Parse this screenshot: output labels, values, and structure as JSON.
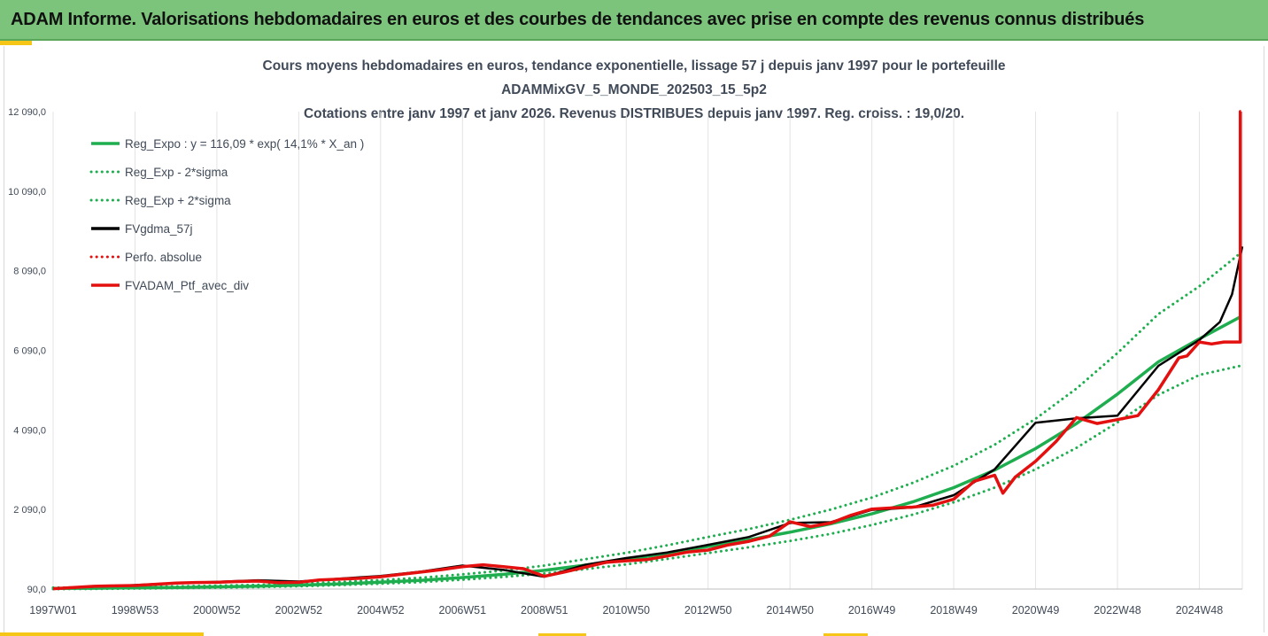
{
  "banner": {
    "title": "ADAM Informe. Valorisations hebdomadaires en euros et des courbes de tendances avec prise en compte des revenus connus distribués"
  },
  "chart_data": {
    "type": "line",
    "title": [
      "Cours moyens hebdomadaires  en euros, tendance exponentielle, lissage 57 j depuis janv 1997 pour le portefeuille",
      "ADAMMixGV_5_MONDE_202503_15_5p2",
      "Cotations entre janv 1997 et janv 2026. Revenus DISTRIBUES depuis janv 1997. Reg. croiss. : 19,0/20."
    ],
    "xlabel": "",
    "ylabel": "",
    "ylim": [
      90,
      12090
    ],
    "xlim": [
      1997.0,
      2026.05
    ],
    "grid": "vertical",
    "legend_position": "top-left",
    "y_ticks": [
      {
        "value": 90,
        "label": "90,0"
      },
      {
        "value": 2090,
        "label": "2 090,0"
      },
      {
        "value": 4090,
        "label": "4 090,0"
      },
      {
        "value": 6090,
        "label": "6 090,0"
      },
      {
        "value": 8090,
        "label": "8 090,0"
      },
      {
        "value": 10090,
        "label": "10 090,0"
      },
      {
        "value": 12090,
        "label": "12 090,0"
      }
    ],
    "x_ticks": [
      {
        "value": 1997.0,
        "label": "1997W01"
      },
      {
        "value": 1999.0,
        "label": "1998W53"
      },
      {
        "value": 2001.0,
        "label": "2000W52"
      },
      {
        "value": 2003.0,
        "label": "2002W52"
      },
      {
        "value": 2005.0,
        "label": "2004W52"
      },
      {
        "value": 2007.0,
        "label": "2006W51"
      },
      {
        "value": 2009.0,
        "label": "2008W51"
      },
      {
        "value": 2011.0,
        "label": "2010W50"
      },
      {
        "value": 2013.0,
        "label": "2012W50"
      },
      {
        "value": 2015.0,
        "label": "2014W50"
      },
      {
        "value": 2017.0,
        "label": "2016W49"
      },
      {
        "value": 2019.0,
        "label": "2018W49"
      },
      {
        "value": 2021.0,
        "label": "2020W49"
      },
      {
        "value": 2023.0,
        "label": "2022W48"
      },
      {
        "value": 2025.0,
        "label": "2024W48"
      }
    ],
    "series": [
      {
        "name": "Reg_Expo : y = 116,09 * exp( 14,1% *  X_an )",
        "color": "#1fae4f",
        "style": "solid",
        "width": 3.5,
        "x": [
          1997,
          1998,
          1999,
          2000,
          2001,
          2002,
          2003,
          2004,
          2005,
          2006,
          2007,
          2008,
          2009,
          2010,
          2011,
          2012,
          2013,
          2014,
          2015,
          2016,
          2017,
          2018,
          2019,
          2020,
          2021,
          2022,
          2023,
          2024,
          2025,
          2026
        ],
        "y": [
          105,
          111,
          122,
          131,
          146,
          162,
          189,
          220,
          262,
          310,
          380,
          460,
          560,
          690,
          830,
          990,
          1160,
          1330,
          1520,
          1730,
          1980,
          2280,
          2640,
          3080,
          3620,
          4250,
          4990,
          5800,
          6380,
          6930
        ]
      },
      {
        "name": "Reg_Exp - 2*sigma",
        "color": "#1fae4f",
        "style": "dotted",
        "width": 3,
        "x": [
          1997,
          1998,
          1999,
          2000,
          2001,
          2002,
          2003,
          2004,
          2005,
          2006,
          2007,
          2008,
          2009,
          2010,
          2011,
          2012,
          2013,
          2014,
          2015,
          2016,
          2017,
          2018,
          2019,
          2020,
          2021,
          2022,
          2023,
          2024,
          2025,
          2026
        ],
        "y": [
          90,
          95,
          104,
          112,
          125,
          139,
          162,
          190,
          225,
          265,
          325,
          395,
          480,
          590,
          710,
          848,
          995,
          1140,
          1300,
          1480,
          1700,
          1960,
          2270,
          2640,
          3100,
          3640,
          4280,
          4970,
          5470,
          5700
        ]
      },
      {
        "name": "Reg_Exp + 2*sigma",
        "color": "#1fae4f",
        "style": "dotted",
        "width": 3,
        "x": [
          1997,
          1998,
          1999,
          2000,
          2001,
          2002,
          2003,
          2004,
          2005,
          2006,
          2007,
          2008,
          2009,
          2010,
          2011,
          2012,
          2013,
          2014,
          2015,
          2016,
          2017,
          2018,
          2019,
          2020,
          2021,
          2022,
          2023,
          2024,
          2025,
          2026
        ],
        "y": [
          125,
          133,
          146,
          157,
          175,
          195,
          227,
          265,
          315,
          375,
          460,
          555,
          680,
          840,
          1000,
          1190,
          1400,
          1600,
          1830,
          2090,
          2390,
          2760,
          3190,
          3720,
          4370,
          5130,
          6020,
          7000,
          7700,
          8530
        ]
      },
      {
        "name": "FVgdma_57j",
        "color": "#000000",
        "style": "solid",
        "width": 2.5,
        "x": [
          1997,
          1998,
          1999,
          2000,
          2001,
          2002,
          2003,
          2004,
          2005,
          2006,
          2007,
          2008,
          2009,
          2010,
          2011,
          2012,
          2013,
          2014,
          2015,
          2016,
          2017,
          2018,
          2019,
          2020,
          2021,
          2022,
          2023,
          2024,
          2025,
          2025.5,
          2025.8,
          2026.05
        ],
        "y": [
          100,
          150,
          190,
          240,
          270,
          310,
          280,
          350,
          420,
          530,
          680,
          570,
          400,
          700,
          870,
          1010,
          1200,
          1400,
          1750,
          1770,
          2080,
          2140,
          2450,
          3100,
          4270,
          4380,
          4450,
          5700,
          6350,
          6800,
          7500,
          8700
        ]
      },
      {
        "name": "Perfo. absolue",
        "color": "#e3100f",
        "style": "dotted",
        "width": 2.5,
        "x": [],
        "y": []
      },
      {
        "name": "FVADAM_Ptf_avec_div",
        "color": "#e3100f",
        "style": "solid",
        "width": 3.5,
        "x": [
          1997,
          1997.5,
          1998,
          1998.5,
          1999,
          1999.5,
          2000,
          2000.5,
          2001,
          2001.5,
          2002,
          2002.5,
          2003,
          2003.5,
          2004,
          2004.5,
          2005,
          2005.5,
          2006,
          2006.5,
          2007,
          2007.5,
          2008,
          2008.5,
          2009,
          2009.5,
          2010,
          2010.5,
          2011,
          2011.5,
          2012,
          2012.5,
          2013,
          2013.5,
          2014,
          2014.5,
          2015,
          2015.5,
          2016,
          2016.5,
          2017,
          2017.5,
          2018,
          2018.5,
          2019,
          2019.5,
          2020,
          2020.2,
          2020.5,
          2021,
          2021.5,
          2022,
          2022.5,
          2023,
          2023.5,
          2024,
          2024.5,
          2024.7,
          2025,
          2025.3,
          2025.6,
          2025.9,
          2026.0,
          2026.0,
          2026.02
        ],
        "y": [
          100,
          130,
          160,
          170,
          180,
          210,
          240,
          255,
          260,
          280,
          290,
          250,
          260,
          320,
          340,
          360,
          400,
          460,
          520,
          580,
          650,
          700,
          650,
          600,
          410,
          520,
          640,
          760,
          800,
          830,
          920,
          1020,
          1070,
          1200,
          1290,
          1420,
          1780,
          1660,
          1750,
          1950,
          2100,
          2130,
          2150,
          2200,
          2350,
          2800,
          2950,
          2500,
          2900,
          3300,
          3800,
          4400,
          4250,
          4350,
          4450,
          5100,
          5900,
          5950,
          6300,
          6250,
          6300,
          6300,
          6300,
          12090,
          12090
        ]
      }
    ]
  }
}
